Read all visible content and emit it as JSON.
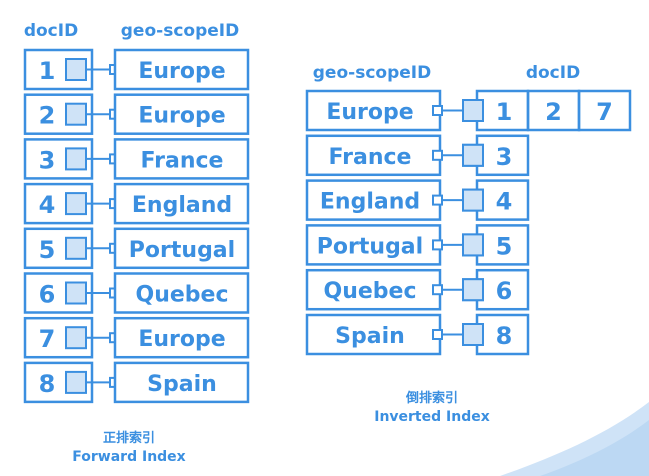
{
  "colors": {
    "blue": "#3b8fe0",
    "fill": "#cfe3f7",
    "text": "#3b8fe0",
    "corner": "#bcd8f3"
  },
  "forward": {
    "header_doc": "docID",
    "header_geo": "geo-scopeID",
    "rows": [
      {
        "doc": "1",
        "geo": "Europe"
      },
      {
        "doc": "2",
        "geo": "Europe"
      },
      {
        "doc": "3",
        "geo": "France"
      },
      {
        "doc": "4",
        "geo": "England"
      },
      {
        "doc": "5",
        "geo": "Portugal"
      },
      {
        "doc": "6",
        "geo": "Quebec"
      },
      {
        "doc": "7",
        "geo": "Europe"
      },
      {
        "doc": "8",
        "geo": "Spain"
      }
    ],
    "caption_cn": "正排索引",
    "caption_en": "Forward Index"
  },
  "inverted": {
    "header_geo": "geo-scopeID",
    "header_doc": "docID",
    "rows": [
      {
        "geo": "Europe",
        "docs": [
          "1",
          "2",
          "7"
        ]
      },
      {
        "geo": "France",
        "docs": [
          "3"
        ]
      },
      {
        "geo": "England",
        "docs": [
          "4"
        ]
      },
      {
        "geo": "Portugal",
        "docs": [
          "5"
        ]
      },
      {
        "geo": "Quebec",
        "docs": [
          "6"
        ]
      },
      {
        "geo": "Spain",
        "docs": [
          "8"
        ]
      }
    ],
    "caption_cn": "倒排索引",
    "caption_en": "Inverted Index"
  }
}
